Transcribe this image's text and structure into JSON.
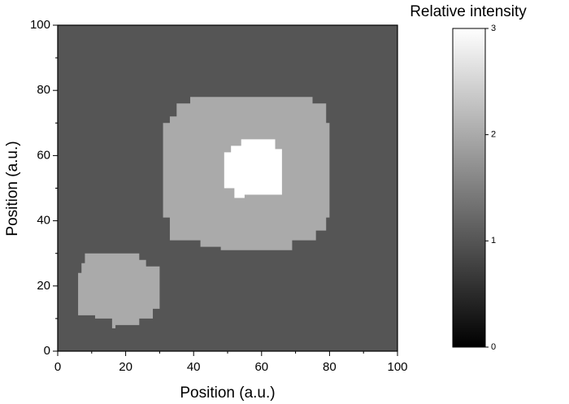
{
  "chart_data": {
    "type": "heatmap",
    "xlabel": "Position (a.u.)",
    "ylabel": "Position (a.u.)",
    "xlim": [
      0,
      100
    ],
    "ylim": [
      0,
      100
    ],
    "xticks": [
      0,
      20,
      40,
      60,
      80,
      100
    ],
    "yticks": [
      0,
      20,
      40,
      60,
      80,
      100
    ],
    "background_value": 1,
    "regions": [
      {
        "value": 2,
        "polygon": [
          [
            39,
            78
          ],
          [
            75,
            78
          ],
          [
            75,
            76
          ],
          [
            79,
            76
          ],
          [
            79,
            70
          ],
          [
            80,
            70
          ],
          [
            80,
            41
          ],
          [
            79,
            41
          ],
          [
            79,
            37
          ],
          [
            76,
            37
          ],
          [
            76,
            34
          ],
          [
            69,
            34
          ],
          [
            69,
            31
          ],
          [
            48,
            31
          ],
          [
            48,
            32
          ],
          [
            42,
            32
          ],
          [
            42,
            34
          ],
          [
            33,
            34
          ],
          [
            33,
            41
          ],
          [
            31,
            41
          ],
          [
            31,
            70
          ],
          [
            33,
            70
          ],
          [
            33,
            72
          ],
          [
            35,
            72
          ],
          [
            35,
            76
          ],
          [
            39,
            76
          ]
        ]
      },
      {
        "value": 3,
        "polygon": [
          [
            54,
            65
          ],
          [
            64,
            65
          ],
          [
            64,
            62
          ],
          [
            66,
            62
          ],
          [
            66,
            48
          ],
          [
            55,
            48
          ],
          [
            55,
            47
          ],
          [
            52,
            47
          ],
          [
            52,
            50
          ],
          [
            49,
            50
          ],
          [
            49,
            61
          ],
          [
            51,
            61
          ],
          [
            51,
            63
          ],
          [
            54,
            63
          ]
        ]
      },
      {
        "value": 2,
        "polygon": [
          [
            8,
            30
          ],
          [
            24,
            30
          ],
          [
            24,
            28
          ],
          [
            26,
            28
          ],
          [
            26,
            26
          ],
          [
            30,
            26
          ],
          [
            30,
            13
          ],
          [
            28,
            13
          ],
          [
            28,
            10
          ],
          [
            24,
            10
          ],
          [
            24,
            8
          ],
          [
            17,
            8
          ],
          [
            17,
            7
          ],
          [
            16,
            7
          ],
          [
            16,
            10
          ],
          [
            11,
            10
          ],
          [
            11,
            11
          ],
          [
            6,
            11
          ],
          [
            6,
            24
          ],
          [
            7,
            24
          ],
          [
            7,
            27
          ],
          [
            8,
            27
          ]
        ]
      }
    ],
    "colorbar": {
      "label": "Relative intensity",
      "lim": [
        0,
        3
      ],
      "ticks": [
        0,
        1,
        2,
        3
      ],
      "colors": [
        "#000000",
        "#ffffff"
      ]
    }
  }
}
